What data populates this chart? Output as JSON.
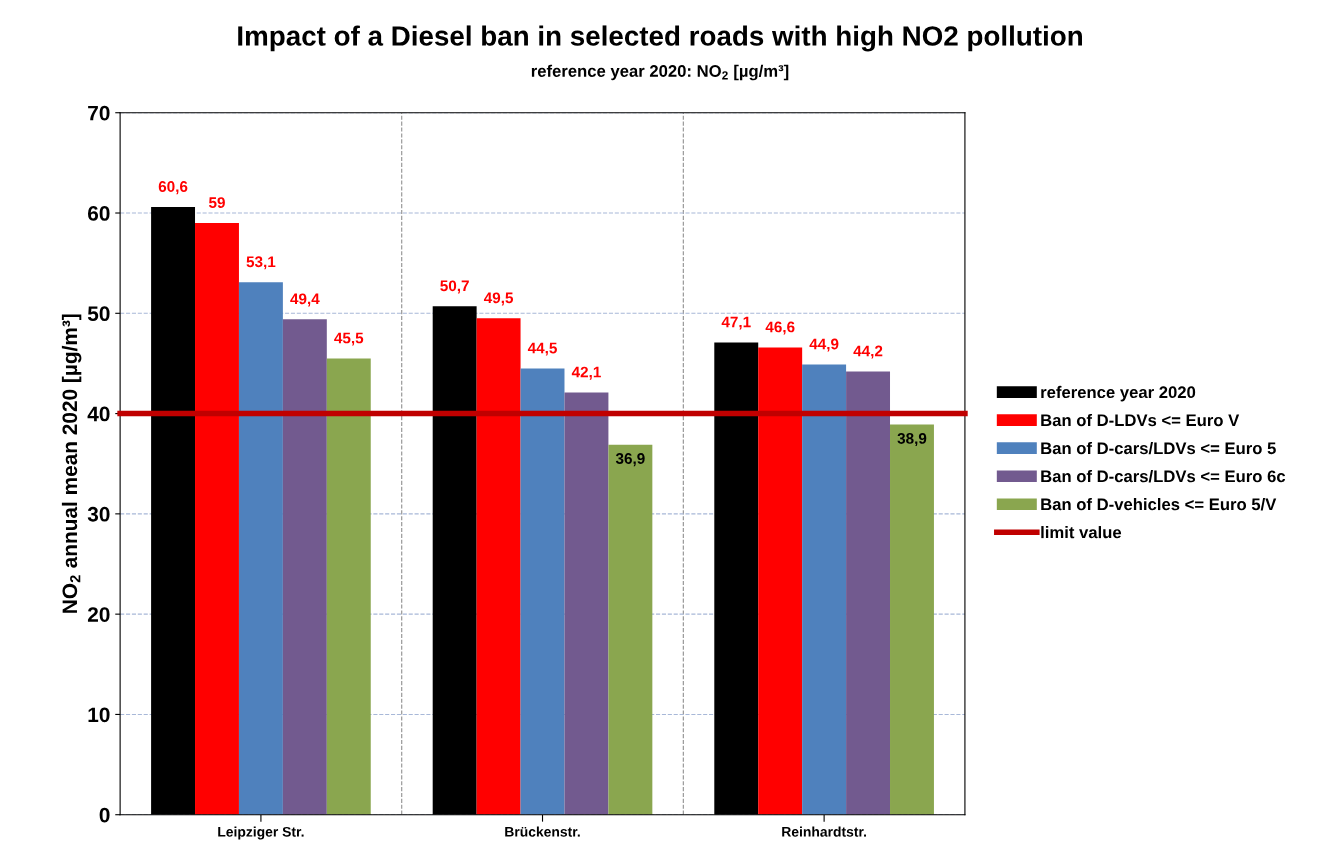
{
  "chart_data": {
    "type": "bar",
    "title": "Impact of a Diesel ban in selected roads with high NO2 pollution",
    "subtitle": "reference year 2020: NO$_{2}$ [µg/m³]",
    "ylabel": "NO$_{2}$ annual mean 2020 [µg/m³]",
    "categories": [
      "Leipziger Str.",
      "Brückenstr.",
      "Reinhardtstr."
    ],
    "series": [
      {
        "name": "reference year 2020",
        "color": "#000000",
        "values": [
          60.6,
          50.7,
          47.1
        ],
        "value_labels": [
          "60,6",
          "50,7",
          "47,1"
        ]
      },
      {
        "name": "Ban of D-LDVs <= Euro V",
        "color": "#ff0000",
        "values": [
          59,
          49.5,
          46.6
        ],
        "value_labels": [
          "59",
          "49,5",
          "46,6"
        ]
      },
      {
        "name": "Ban of D-cars/LDVs <= Euro 5",
        "color": "#4f81bd",
        "values": [
          53.1,
          44.5,
          44.9
        ],
        "value_labels": [
          "53,1",
          "44,5",
          "44,9"
        ]
      },
      {
        "name": "Ban of D-cars/LDVs <= Euro 6c",
        "color": "#725a8f",
        "values": [
          49.4,
          42.1,
          44.2
        ],
        "value_labels": [
          "49,4",
          "42,1",
          "44,2"
        ]
      },
      {
        "name": "Ban of D-vehicles <= Euro 5/V",
        "color": "#8aa64f",
        "values": [
          45.5,
          36.9,
          38.9
        ],
        "value_labels": [
          "45,5",
          "36,9",
          "38,9"
        ]
      }
    ],
    "ref_lines": [
      {
        "axis": "y",
        "value": 40,
        "label": "limit value",
        "color": "#c00000"
      }
    ],
    "ylim": [
      0,
      70
    ],
    "yticks": [
      0,
      10,
      20,
      30,
      40,
      50,
      60,
      70
    ],
    "grid": true,
    "legend": "right"
  }
}
